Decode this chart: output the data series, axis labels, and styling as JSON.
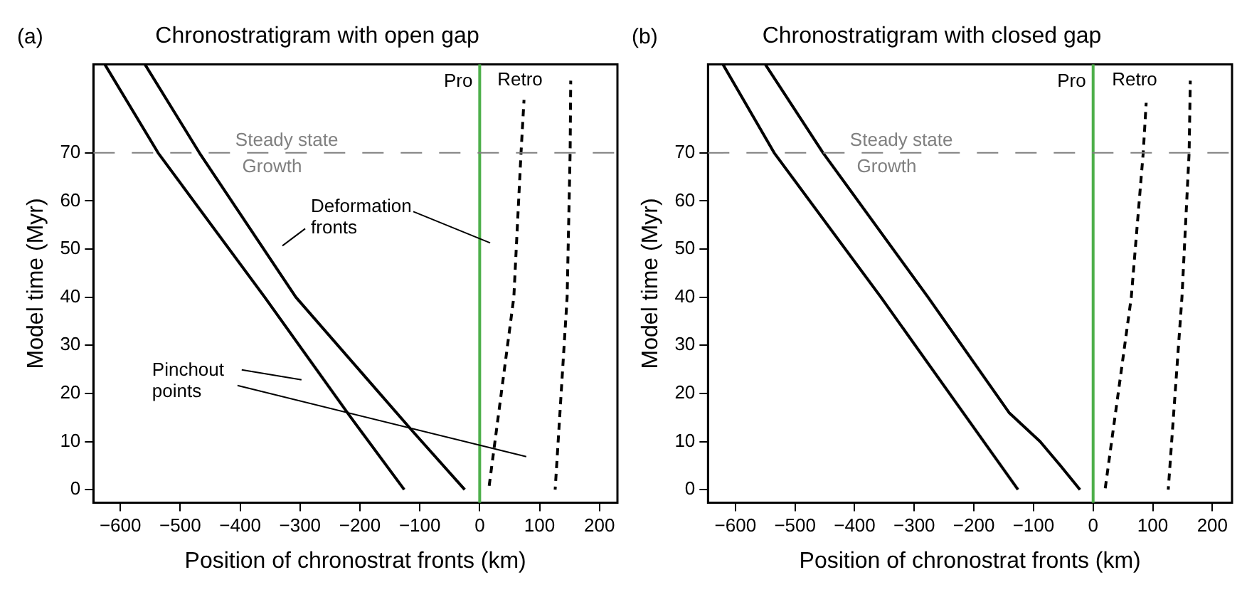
{
  "chart_data": [
    {
      "type": "line",
      "title": "Chronostratigram with open gap",
      "xlabel": "Position of chronostrat fronts (km)",
      "ylabel": "Model time (Myr)",
      "xlim": [
        -645,
        230
      ],
      "ylim": [
        -2.7,
        88.4
      ],
      "xticks": [
        -600,
        -500,
        -400,
        -300,
        -200,
        -100,
        0,
        100,
        200
      ],
      "yticks": [
        0,
        10,
        20,
        30,
        40,
        50,
        60,
        70
      ],
      "grid": false,
      "legend": false,
      "marker": "none",
      "series": [
        {
          "color": "#000000",
          "line_style": "solid",
          "x": [
            -126,
            -218,
            -359,
            -537,
            -626
          ],
          "values": [
            0,
            15.5,
            40,
            70,
            88.4
          ]
        },
        {
          "color": "#000000",
          "line_style": "solid",
          "x": [
            -25,
            -111,
            -307,
            -468,
            -559
          ],
          "values": [
            0,
            12,
            40,
            70,
            88.4
          ]
        },
        {
          "color": "#000000",
          "line_style": "dashed",
          "x": [
            15,
            57,
            69,
            74
          ],
          "values": [
            0,
            40,
            70,
            81
          ]
        },
        {
          "color": "#000000",
          "line_style": "dashed",
          "x": [
            126,
            146,
            151,
            152
          ],
          "values": [
            0,
            40,
            70,
            85
          ]
        }
      ],
      "ref_lines": [
        {
          "axis": "x",
          "value": 0,
          "label": "Pro",
          "color": "#4daf4a",
          "line_style": "solid"
        },
        {
          "axis": "y",
          "value": 70,
          "label": "Steady state",
          "color": "#808080",
          "line_style": "dashed"
        }
      ],
      "annotations": [
        "(a)",
        "Retro",
        "Growth",
        "Deformation\nfronts",
        "Pinchout\npoints"
      ]
    },
    {
      "type": "line",
      "title": "Chronostratigram with closed gap",
      "xlabel": "Position of chronostrat fronts (km)",
      "ylabel": "Model time (Myr)",
      "xlim": [
        -646,
        233
      ],
      "ylim": [
        -2.7,
        88.4
      ],
      "xticks": [
        -600,
        -500,
        -400,
        -300,
        -200,
        -100,
        0,
        100,
        200
      ],
      "yticks": [
        0,
        10,
        20,
        30,
        40,
        50,
        60,
        70
      ],
      "grid": false,
      "legend": false,
      "marker": "none",
      "series": [
        {
          "color": "#000000",
          "line_style": "solid",
          "x": [
            -126,
            -356,
            -535,
            -621
          ],
          "values": [
            0,
            40,
            70,
            88.4
          ]
        },
        {
          "color": "#000000",
          "line_style": "solid",
          "x": [
            -22,
            -55,
            -89,
            -141,
            -277,
            -453,
            -550
          ],
          "values": [
            0,
            5,
            10,
            16,
            40,
            70,
            88.4
          ]
        },
        {
          "color": "#000000",
          "line_style": "dashed",
          "x": [
            20,
            64,
            84,
            89
          ],
          "values": [
            0,
            40,
            70,
            80.4
          ]
        },
        {
          "color": "#000000",
          "line_style": "dashed",
          "x": [
            126,
            149,
            161,
            163
          ],
          "values": [
            0,
            40,
            70,
            85
          ]
        }
      ],
      "ref_lines": [
        {
          "axis": "x",
          "value": 0,
          "label": "Pro",
          "color": "#4daf4a",
          "line_style": "solid"
        },
        {
          "axis": "y",
          "value": 70,
          "label": "Steady state",
          "color": "#808080",
          "line_style": "dashed"
        }
      ],
      "annotations": [
        "(b)",
        "Retro",
        "Growth"
      ]
    }
  ]
}
